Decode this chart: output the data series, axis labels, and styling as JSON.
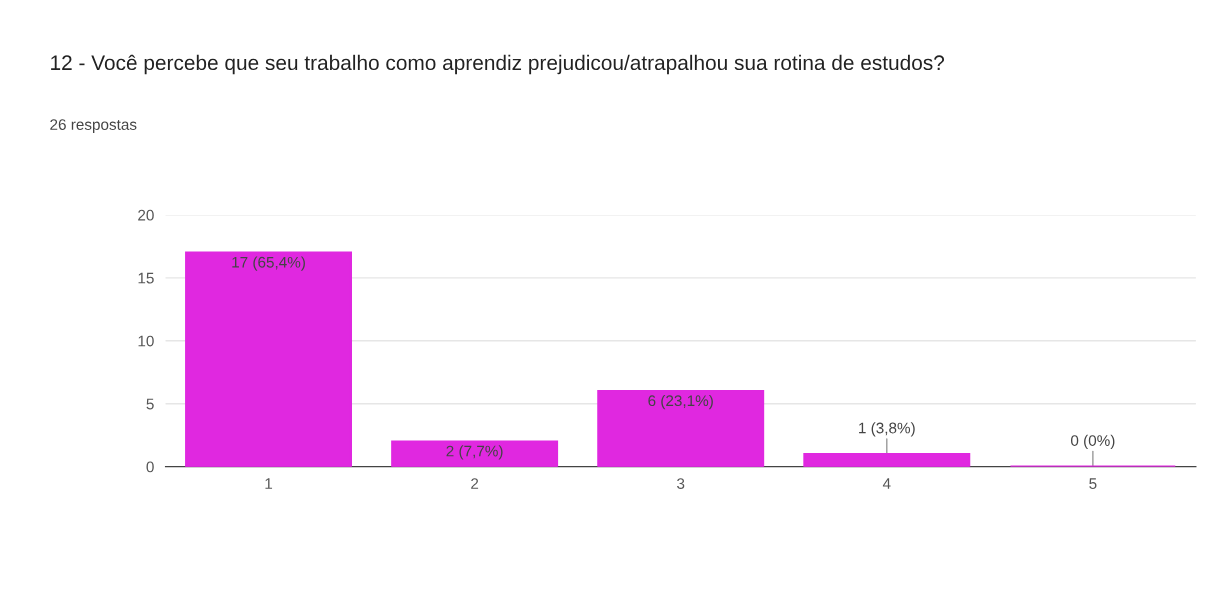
{
  "chart_data": {
    "type": "bar",
    "title": "12 - Você percebe que seu trabalho como aprendiz prejudicou/atrapalhou sua rotina de estudos?",
    "subtitle": "26 respostas",
    "categories": [
      "1",
      "2",
      "3",
      "4",
      "5"
    ],
    "values": [
      17,
      2,
      6,
      1,
      0
    ],
    "value_labels": [
      "17 (65,4%)",
      "2 (7,7%)",
      "6 (23,1%)",
      "1 (3,8%)",
      "0 (0%)"
    ],
    "color": "#e028e0",
    "ylim": [
      0,
      20
    ],
    "yticks": [
      0,
      5,
      10,
      15,
      20
    ],
    "grid": "y",
    "legend": false
  }
}
